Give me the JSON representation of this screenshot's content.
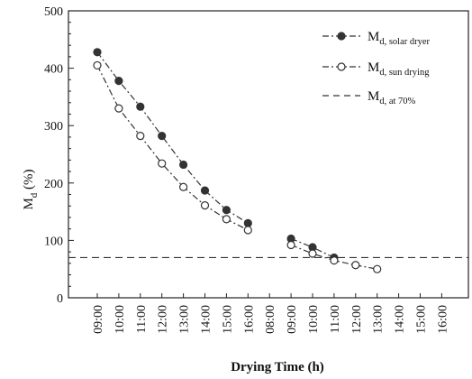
{
  "chart_data": {
    "type": "line",
    "title": "",
    "xlabel": "Drying Time (h)",
    "ylabel_main": "M",
    "ylabel_sub": "d",
    "ylabel_unit": " (%)",
    "categories": [
      "09:00",
      "10:00",
      "11:00",
      "12:00",
      "13:00",
      "14:00",
      "15:00",
      "16:00",
      "08:00",
      "09:00",
      "10:00",
      "11:00",
      "12:00",
      "13:00",
      "14:00",
      "15:00",
      "16:00"
    ],
    "ylim": [
      0,
      500
    ],
    "yticks": [
      "0",
      "100",
      "200",
      "300",
      "400",
      "500"
    ],
    "grid": false,
    "legend_position": "top-right",
    "series": [
      {
        "legend_main": "M",
        "legend_sub": "d, solar dryer",
        "marker": "filled-circle",
        "line_style": "dash-dot",
        "segments": [
          [
            [
              0,
              428
            ],
            [
              1,
              378
            ],
            [
              2,
              333
            ],
            [
              3,
              282
            ],
            [
              4,
              232
            ],
            [
              5,
              187
            ],
            [
              6,
              153
            ],
            [
              7,
              130
            ]
          ],
          [
            [
              9,
              103
            ],
            [
              10,
              88
            ],
            [
              11,
              70
            ]
          ]
        ]
      },
      {
        "legend_main": "M",
        "legend_sub": "d, sun drying",
        "marker": "open-circle",
        "line_style": "dash-dot",
        "segments": [
          [
            [
              0,
              405
            ],
            [
              1,
              330
            ],
            [
              2,
              282
            ],
            [
              3,
              234
            ],
            [
              4,
              193
            ],
            [
              5,
              161
            ],
            [
              6,
              137
            ],
            [
              7,
              118
            ]
          ],
          [
            [
              9,
              92
            ],
            [
              10,
              77
            ],
            [
              11,
              65
            ],
            [
              12,
              57
            ],
            [
              13,
              50
            ]
          ]
        ]
      },
      {
        "legend_main": "M",
        "legend_sub": "d, at 70%",
        "marker": "none",
        "line_style": "dashed",
        "value": 70
      }
    ]
  }
}
